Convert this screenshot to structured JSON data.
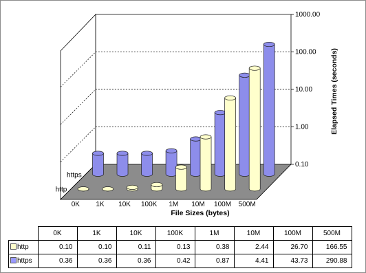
{
  "chart_data": {
    "type": "bar",
    "title": "",
    "xlabel": "File Sizes (bytes)",
    "ylabel": "Elapsed Times (seconds)",
    "yscale": "log",
    "ylim": [
      0.1,
      1000
    ],
    "ytick_labels": [
      "0.10",
      "1.00",
      "10.00",
      "100.00",
      "1000.00"
    ],
    "yticks": [
      0.1,
      1,
      10,
      100,
      1000
    ],
    "grid": true,
    "categories": [
      "0K",
      "1K",
      "10K",
      "100K",
      "1M",
      "10M",
      "100M",
      "500M"
    ],
    "series": [
      {
        "name": "http",
        "values": [
          0.1,
          0.1,
          0.11,
          0.13,
          0.38,
          2.44,
          26.7,
          166.55
        ],
        "labels": [
          "0.10",
          "0.10",
          "0.11",
          "0.13",
          "0.38",
          "2.44",
          "26.70",
          "166.55"
        ],
        "color": "#ffffcc"
      },
      {
        "name": "https",
        "values": [
          0.36,
          0.36,
          0.36,
          0.42,
          0.87,
          4.41,
          43.73,
          290.88
        ],
        "labels": [
          "0.36",
          "0.36",
          "0.36",
          "0.42",
          "0.87",
          "4.41",
          "43.73",
          "290.88"
        ],
        "color": "#9999ff"
      }
    ],
    "depth_labels": [
      "https",
      "http"
    ],
    "legend": "data-table"
  }
}
